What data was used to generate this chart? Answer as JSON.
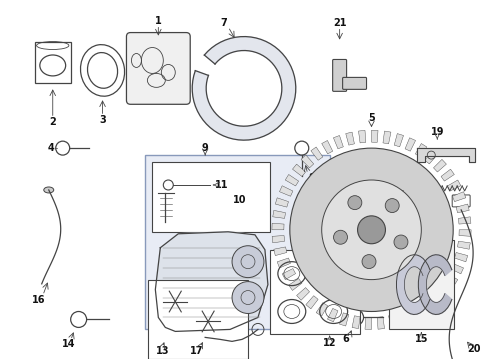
{
  "bg_color": "#ffffff",
  "lc": "#444444",
  "llc": "#888888",
  "box_fill": "#e8ecf5",
  "fig_w": 4.9,
  "fig_h": 3.6,
  "dpi": 100
}
